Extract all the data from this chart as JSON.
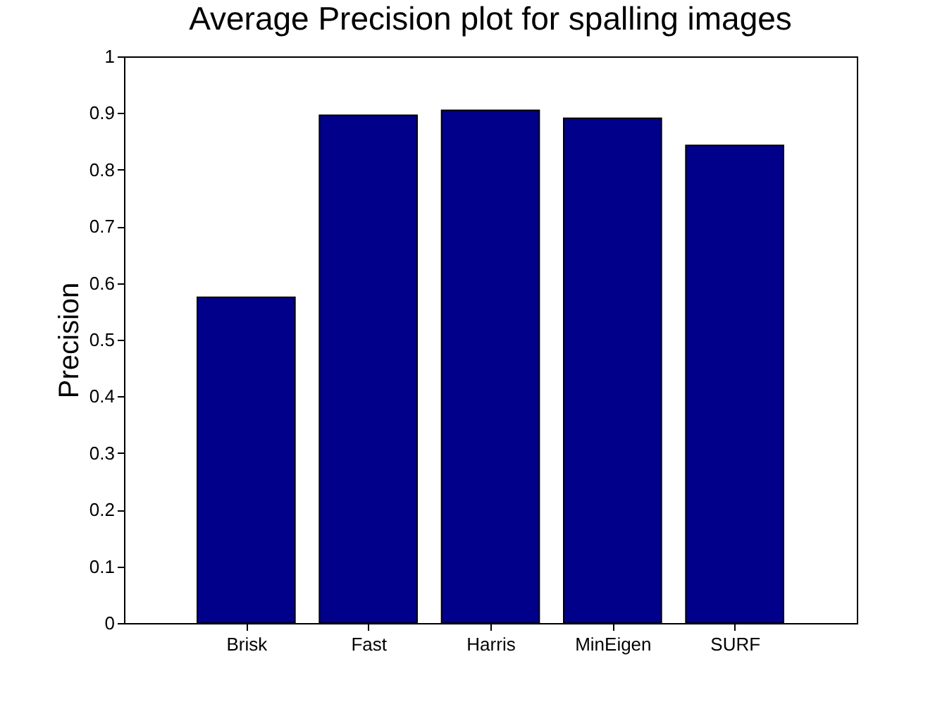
{
  "chart_data": {
    "type": "bar",
    "title": "Average Precision plot for spalling images",
    "ylabel": "Precision",
    "categories": [
      "Brisk",
      "Fast",
      "Harris",
      "MinEigen",
      "SURF"
    ],
    "values": [
      0.575,
      0.896,
      0.905,
      0.891,
      0.843
    ],
    "color": "#00008b",
    "ylim": [
      0,
      1
    ],
    "yticks": [
      0,
      0.1,
      0.2,
      0.3,
      0.4,
      0.5,
      0.6,
      0.7,
      0.8,
      0.9,
      1
    ],
    "grid": false
  }
}
